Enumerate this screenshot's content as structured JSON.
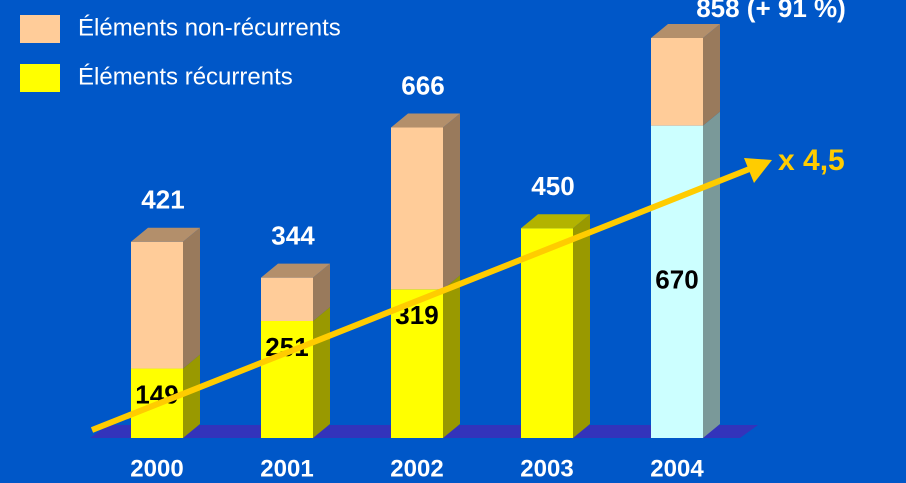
{
  "chart_data": {
    "type": "bar3d-stacked",
    "categories": [
      "2000",
      "2001",
      "2002",
      "2003",
      "2004"
    ],
    "series": [
      {
        "name": "Éléments récurrents",
        "color": "#ffff00",
        "point_colors": [
          "#ffff00",
          "#ffff00",
          "#ffff00",
          "#ffff00",
          "#ccffff"
        ],
        "values": [
          149,
          251,
          319,
          450,
          670
        ],
        "value_labels": [
          "149",
          "251",
          "319",
          null,
          "670"
        ]
      },
      {
        "name": "Éléments non-récurrents",
        "color": "#ffcc99",
        "values": [
          272,
          93,
          347,
          0,
          188
        ]
      }
    ],
    "totals": [
      421,
      344,
      666,
      450,
      858
    ],
    "total_labels": [
      "421",
      "344",
      "666",
      "450",
      "858  (+ 91 %)"
    ],
    "annotation": {
      "text": "x 4,5",
      "color": "#ffcc00"
    },
    "legend": "top-left"
  }
}
